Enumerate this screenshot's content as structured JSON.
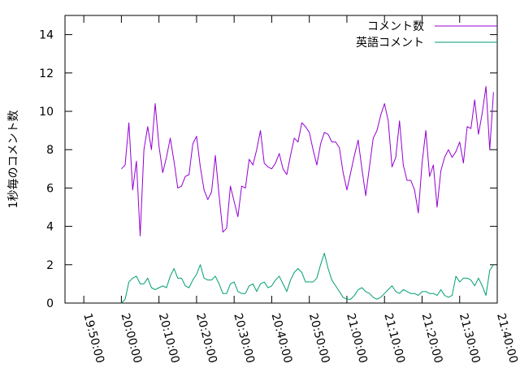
{
  "chart_data": {
    "type": "line",
    "ylabel": "1秒毎のコメント数",
    "xlabel": "",
    "title": "",
    "ylim": [
      0,
      15
    ],
    "yticks": [
      0,
      2,
      4,
      6,
      8,
      10,
      12,
      14
    ],
    "xlim": [
      "19:45:00",
      "21:40:00"
    ],
    "xticks": [
      "19:50:00",
      "20:00:00",
      "20:10:00",
      "20:20:00",
      "20:30:00",
      "20:40:00",
      "20:50:00",
      "21:00:00",
      "21:10:00",
      "21:20:00",
      "21:30:00",
      "21:40:00"
    ],
    "grid": false,
    "legend_position": "top-right",
    "series": [
      {
        "name": "コメント数",
        "color": "#9400d3",
        "x": [
          "20:00",
          "20:01",
          "20:02",
          "20:03",
          "20:04",
          "20:05",
          "20:06",
          "20:07",
          "20:08",
          "20:09",
          "20:10",
          "20:11",
          "20:12",
          "20:13",
          "20:14",
          "20:15",
          "20:16",
          "20:17",
          "20:18",
          "20:19",
          "20:20",
          "20:21",
          "20:22",
          "20:23",
          "20:24",
          "20:25",
          "20:26",
          "20:27",
          "20:28",
          "20:29",
          "20:30",
          "20:31",
          "20:32",
          "20:33",
          "20:34",
          "20:35",
          "20:36",
          "20:37",
          "20:38",
          "20:39",
          "20:40",
          "20:41",
          "20:42",
          "20:43",
          "20:44",
          "20:45",
          "20:46",
          "20:47",
          "20:48",
          "20:49",
          "20:50",
          "20:51",
          "20:52",
          "20:53",
          "20:54",
          "20:55",
          "20:56",
          "20:57",
          "20:58",
          "20:59",
          "21:00",
          "21:01",
          "21:02",
          "21:03",
          "21:04",
          "21:05",
          "21:06",
          "21:07",
          "21:08",
          "21:09",
          "21:10",
          "21:11",
          "21:12",
          "21:13",
          "21:14",
          "21:15",
          "21:16",
          "21:17",
          "21:18",
          "21:19",
          "21:20",
          "21:21",
          "21:22",
          "21:23",
          "21:24",
          "21:25",
          "21:26",
          "21:27",
          "21:28",
          "21:29",
          "21:30",
          "21:31",
          "21:32",
          "21:33",
          "21:34",
          "21:35",
          "21:36",
          "21:37",
          "21:38",
          "21:39"
        ],
        "values": [
          7.0,
          7.2,
          9.4,
          5.9,
          7.4,
          3.5,
          8.0,
          9.2,
          8.0,
          10.4,
          8.2,
          6.8,
          7.6,
          8.6,
          7.4,
          6.0,
          6.1,
          6.6,
          6.7,
          8.3,
          8.7,
          7.1,
          5.9,
          5.4,
          5.8,
          7.7,
          5.6,
          3.7,
          3.9,
          6.1,
          5.3,
          4.5,
          6.1,
          6.0,
          7.5,
          7.2,
          8.0,
          9.0,
          7.3,
          7.1,
          7.0,
          7.3,
          7.8,
          7.0,
          6.7,
          7.7,
          8.6,
          8.4,
          9.4,
          9.2,
          8.9,
          8.0,
          7.2,
          8.3,
          8.9,
          8.8,
          8.4,
          8.4,
          8.1,
          6.8,
          5.9,
          6.8,
          7.7,
          8.5,
          7.0,
          5.6,
          7.1,
          8.6,
          9.0,
          9.8,
          10.4,
          9.5,
          7.1,
          7.6,
          9.5,
          7.2,
          6.4,
          6.4,
          5.9,
          4.7,
          7.3,
          9.0,
          6.6,
          7.2,
          5.0,
          6.9,
          7.6,
          8.0,
          7.6,
          7.9,
          8.4,
          7.3,
          9.2,
          9.1,
          10.6,
          8.8,
          9.9,
          11.3,
          8.0,
          11.0
        ]
      },
      {
        "name": "英語コメント",
        "color": "#009e73",
        "x": [
          "20:00",
          "20:01",
          "20:02",
          "20:03",
          "20:04",
          "20:05",
          "20:06",
          "20:07",
          "20:08",
          "20:09",
          "20:10",
          "20:11",
          "20:12",
          "20:13",
          "20:14",
          "20:15",
          "20:16",
          "20:17",
          "20:18",
          "20:19",
          "20:20",
          "20:21",
          "20:22",
          "20:23",
          "20:24",
          "20:25",
          "20:26",
          "20:27",
          "20:28",
          "20:29",
          "20:30",
          "20:31",
          "20:32",
          "20:33",
          "20:34",
          "20:35",
          "20:36",
          "20:37",
          "20:38",
          "20:39",
          "20:40",
          "20:41",
          "20:42",
          "20:43",
          "20:44",
          "20:45",
          "20:46",
          "20:47",
          "20:48",
          "20:49",
          "20:50",
          "20:51",
          "20:52",
          "20:53",
          "20:54",
          "20:55",
          "20:56",
          "20:57",
          "20:58",
          "20:59",
          "21:00",
          "21:01",
          "21:02",
          "21:03",
          "21:04",
          "21:05",
          "21:06",
          "21:07",
          "21:08",
          "21:09",
          "21:10",
          "21:11",
          "21:12",
          "21:13",
          "21:14",
          "21:15",
          "21:16",
          "21:17",
          "21:18",
          "21:19",
          "21:20",
          "21:21",
          "21:22",
          "21:23",
          "21:24",
          "21:25",
          "21:26",
          "21:27",
          "21:28",
          "21:29",
          "21:30",
          "21:31",
          "21:32",
          "21:33",
          "21:34",
          "21:35",
          "21:36",
          "21:37",
          "21:38",
          "21:39"
        ],
        "values": [
          0.0,
          0.2,
          1.1,
          1.3,
          1.4,
          1.0,
          1.0,
          1.3,
          0.8,
          0.7,
          0.8,
          0.9,
          0.8,
          1.4,
          1.8,
          1.3,
          1.3,
          0.9,
          0.8,
          1.2,
          1.5,
          2.0,
          1.3,
          1.2,
          1.2,
          1.4,
          1.0,
          0.5,
          0.5,
          1.0,
          1.1,
          0.6,
          0.5,
          0.5,
          0.9,
          1.0,
          0.6,
          1.0,
          1.1,
          0.8,
          0.9,
          1.2,
          1.4,
          1.0,
          0.6,
          1.2,
          1.6,
          1.8,
          1.6,
          1.1,
          1.1,
          1.1,
          1.3,
          2.0,
          2.6,
          1.8,
          1.2,
          0.9,
          0.6,
          0.3,
          0.2,
          0.2,
          0.4,
          0.7,
          0.8,
          0.6,
          0.5,
          0.3,
          0.2,
          0.3,
          0.5,
          0.7,
          0.9,
          0.6,
          0.5,
          0.7,
          0.6,
          0.5,
          0.5,
          0.4,
          0.6,
          0.6,
          0.5,
          0.5,
          0.4,
          0.7,
          0.4,
          0.3,
          0.4,
          1.4,
          1.1,
          1.3,
          1.3,
          1.2,
          0.9,
          1.3,
          0.9,
          0.4,
          1.7,
          2.0
        ]
      }
    ]
  }
}
